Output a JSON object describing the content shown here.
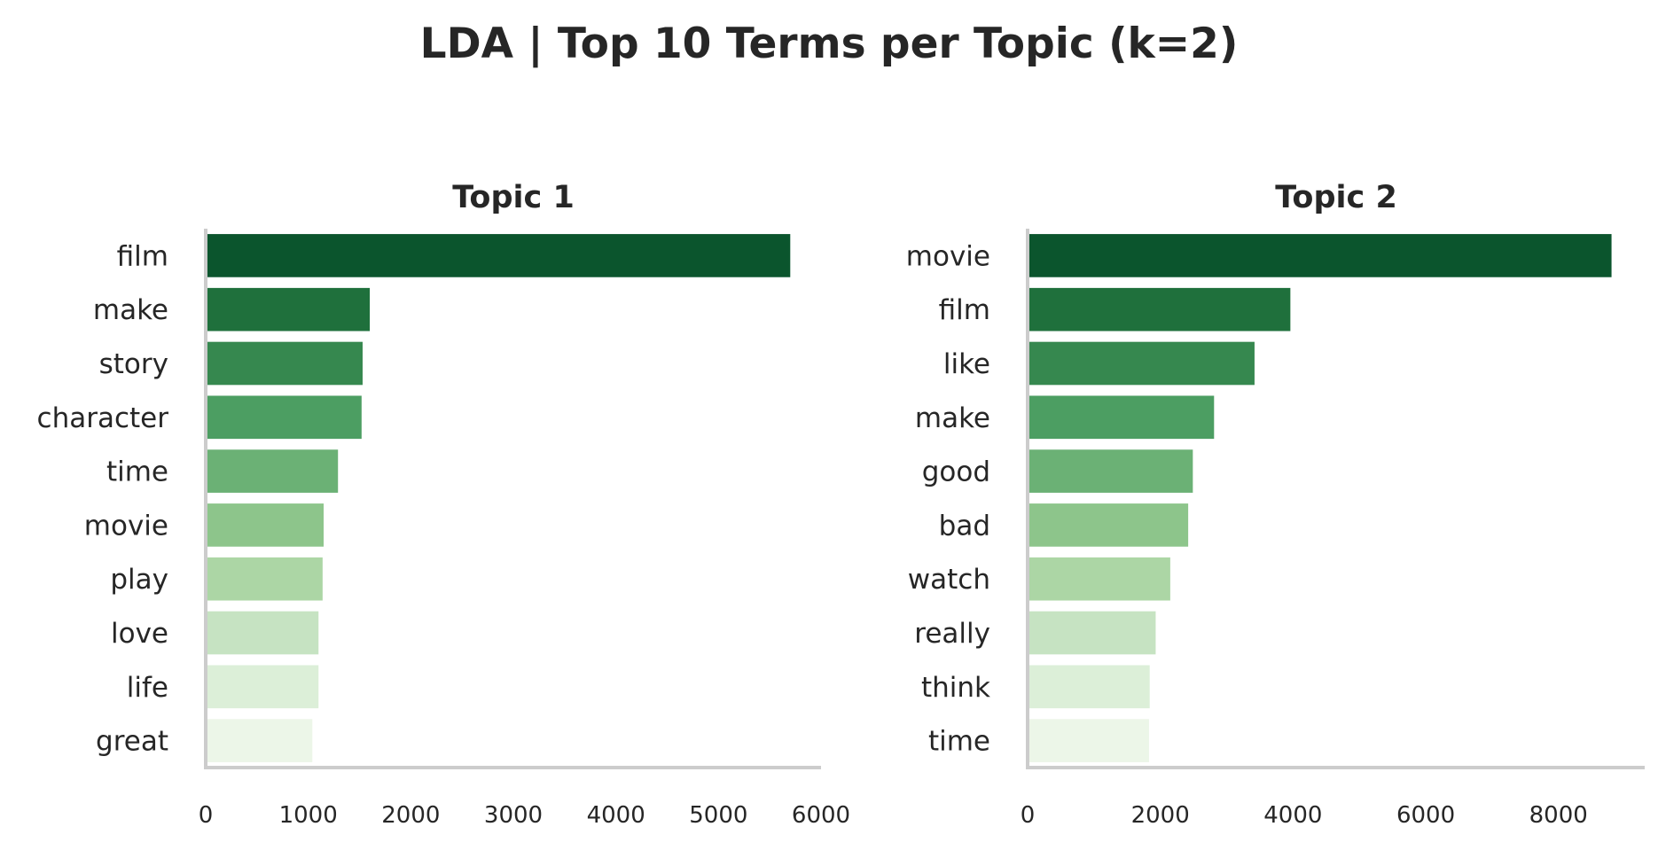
{
  "figure": {
    "title": "LDA | Top 10 Terms per Topic (k=2)"
  },
  "colors": {
    "bars": [
      "#0b552d",
      "#1f703c",
      "#36884f",
      "#4c9e62",
      "#6bb175",
      "#8dc58b",
      "#acd6a5",
      "#c6e3c2",
      "#dcefd8",
      "#ecf6e8"
    ],
    "axis": "#cccccc",
    "text": "#262626"
  },
  "chart_data": [
    {
      "type": "bar",
      "orientation": "horizontal",
      "title": "Topic 1",
      "categories": [
        "film",
        "make",
        "story",
        "character",
        "time",
        "movie",
        "play",
        "love",
        "life",
        "great"
      ],
      "values": [
        5700,
        1600,
        1530,
        1520,
        1290,
        1150,
        1140,
        1100,
        1100,
        1040
      ],
      "xlim": [
        0,
        6000
      ],
      "xticks": [
        0,
        1000,
        2000,
        3000,
        4000,
        5000,
        6000
      ],
      "xlabel": "",
      "ylabel": "",
      "grid": false
    },
    {
      "type": "bar",
      "orientation": "horizontal",
      "title": "Topic 2",
      "categories": [
        "movie",
        "film",
        "like",
        "make",
        "good",
        "bad",
        "watch",
        "really",
        "think",
        "time"
      ],
      "values": [
        8800,
        3960,
        3420,
        2810,
        2490,
        2420,
        2150,
        1930,
        1840,
        1830
      ],
      "xlim": [
        0,
        9300
      ],
      "xticks": [
        0,
        2000,
        4000,
        6000,
        8000
      ],
      "xlabel": "",
      "ylabel": "",
      "grid": false
    }
  ]
}
